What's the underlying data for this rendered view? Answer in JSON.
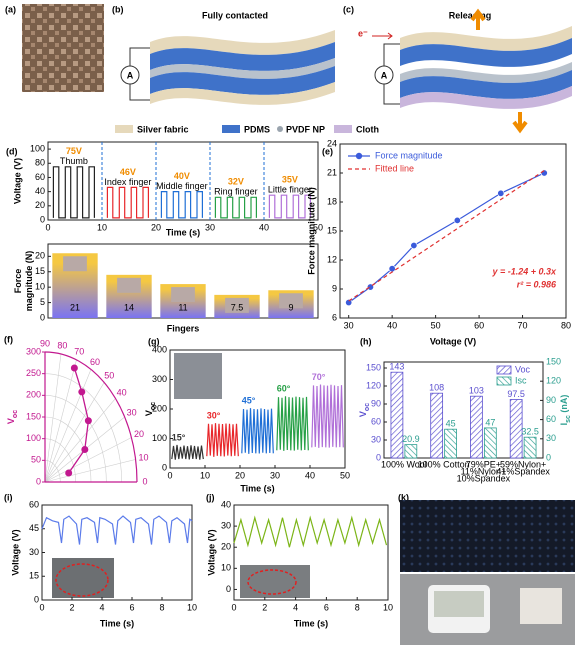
{
  "panel_labels": [
    "(a)",
    "(b)",
    "(c)",
    "(d)",
    "(e)",
    "(f)",
    "(g)",
    "(h)",
    "(i)",
    "(j)",
    "(k)"
  ],
  "diagram": {
    "b_title": "Fully contacted",
    "c_title": "Releasing",
    "ammeter": "A",
    "electron": "e⁻",
    "legend": [
      "Silver fabric",
      "PDMS",
      "PVDF NP",
      "Cloth"
    ]
  },
  "chart_data": [
    {
      "type": "line",
      "x_label": "Time (s)",
      "y_label": "Voltage (V)",
      "xlim": [
        0,
        50
      ],
      "ylim": [
        0,
        110
      ],
      "xticks": [
        0,
        10,
        20,
        30,
        40,
        50
      ],
      "yticks": [
        0,
        20,
        40,
        60,
        80,
        100
      ],
      "dividers": true,
      "legend": "inline",
      "peak_labels": [
        "75V",
        "46V",
        "40V",
        "32V",
        "35V"
      ],
      "series": [
        {
          "name": "Thumb",
          "color": "#222222",
          "x": [
            1,
            1,
            2,
            2,
            3.2,
            3.2,
            4.2,
            4.2,
            5.4,
            5.4,
            6.4,
            6.4,
            7.6,
            7.6,
            8.6,
            8.6
          ],
          "values": [
            3,
            75,
            75,
            3,
            3,
            75,
            75,
            3,
            3,
            75,
            75,
            3,
            3,
            75,
            75,
            3
          ]
        },
        {
          "name": "Index finger",
          "color": "#e8262a",
          "x": [
            11,
            11,
            12,
            12,
            13.2,
            13.2,
            14.2,
            14.2,
            15.4,
            15.4,
            16.4,
            16.4,
            17.6,
            17.6,
            18.6,
            18.6
          ],
          "values": [
            3,
            46,
            46,
            3,
            3,
            46,
            46,
            3,
            3,
            46,
            46,
            3,
            3,
            46,
            46,
            3
          ]
        },
        {
          "name": "Middle finger",
          "color": "#1f6fd6",
          "x": [
            21,
            21,
            22,
            22,
            23.2,
            23.2,
            24.2,
            24.2,
            25.4,
            25.4,
            26.4,
            26.4,
            27.6,
            27.6,
            28.6,
            28.6
          ],
          "values": [
            3,
            40,
            40,
            3,
            3,
            40,
            40,
            3,
            3,
            40,
            40,
            3,
            3,
            40,
            40,
            3
          ]
        },
        {
          "name": "Ring finger",
          "color": "#26a046",
          "x": [
            31,
            31,
            32,
            32,
            33.2,
            33.2,
            34.2,
            34.2,
            35.4,
            35.4,
            36.4,
            36.4,
            37.6,
            37.6,
            38.6,
            38.6
          ],
          "values": [
            3,
            32,
            32,
            3,
            3,
            32,
            32,
            3,
            3,
            32,
            32,
            3,
            3,
            32,
            32,
            3
          ]
        },
        {
          "name": "Little finger",
          "color": "#b070d8",
          "x": [
            41,
            41,
            42,
            42,
            43.2,
            43.2,
            44.2,
            44.2,
            45.4,
            45.4,
            46.4,
            46.4,
            47.6,
            47.6,
            48.6,
            48.6
          ],
          "values": [
            3,
            35,
            35,
            3,
            3,
            35,
            35,
            3,
            3,
            35,
            35,
            3,
            3,
            35,
            35,
            3
          ]
        }
      ]
    },
    {
      "type": "bar",
      "x_label": "Fingers",
      "y_label": [
        "Force",
        "magnitude (N)"
      ],
      "categories": [
        null,
        null,
        null,
        null,
        null
      ],
      "values": [
        21,
        14,
        11,
        7.5,
        9
      ],
      "ylim": [
        0,
        24
      ],
      "yticks": [
        0,
        5,
        10,
        15,
        20
      ],
      "gradient": [
        "#f5c842",
        "#7a73f2"
      ]
    },
    {
      "type": "line",
      "x_label": "Voltage (V)",
      "y_label": "Force magnitude (N)",
      "xlim": [
        28,
        80
      ],
      "xticks": [
        30,
        40,
        50,
        60,
        70,
        80
      ],
      "ylim": [
        6,
        24
      ],
      "yticks": [
        6,
        9,
        12,
        15,
        18,
        21,
        24
      ],
      "legend": "upper left",
      "series": [
        {
          "name": "Force magnitude",
          "color": "#3b5bdb",
          "marker": "circle",
          "x": [
            30,
            35,
            40,
            45,
            55,
            65,
            75
          ],
          "values": [
            7.6,
            9.2,
            11.1,
            13.5,
            16.1,
            18.9,
            21
          ]
        },
        {
          "name": "Fitted line",
          "color": "#e03131",
          "dash": true,
          "x": [
            30,
            75
          ],
          "values": [
            7.76,
            21.26
          ]
        }
      ],
      "annotations": [
        "y = -1.24 + 0.3x",
        "r² = 0.986"
      ]
    },
    {
      "type": "polar",
      "r_label": {
        "text": "V",
        "sub": "oc"
      },
      "rlim": [
        0,
        300
      ],
      "rticks": [
        0,
        50,
        100,
        150,
        200,
        250,
        300
      ],
      "thetalim": [
        0,
        90
      ],
      "thetaticks": [
        0,
        10,
        20,
        30,
        40,
        50,
        60,
        70,
        80,
        90
      ],
      "theta": [
        15,
        30,
        45,
        60,
        70
      ],
      "values": [
        80,
        150,
        200,
        240,
        280
      ],
      "color": "#c2188f"
    },
    {
      "type": "line",
      "x_label": "Time (s)",
      "y_label": {
        "text": "V",
        "sub": "oc"
      },
      "xlim": [
        0,
        50
      ],
      "xticks": [
        0,
        10,
        20,
        30,
        40,
        50
      ],
      "ylim": [
        0,
        400
      ],
      "yticks": [
        0,
        100,
        200,
        300,
        400
      ],
      "legend": "inline",
      "series": [
        {
          "name": "15°",
          "color": "#333333",
          "x": [
            0.5,
            1,
            1.5,
            2,
            2.5,
            3,
            3.5,
            4,
            4.5,
            5,
            5.5,
            6,
            6.5,
            7,
            7.5,
            8,
            8.5,
            9,
            9.5
          ],
          "values": [
            30,
            75,
            28,
            78,
            30,
            72,
            32,
            76,
            30,
            74,
            29,
            77,
            31,
            75,
            30,
            73,
            28,
            76,
            30
          ]
        },
        {
          "name": "30°",
          "color": "#e8262a",
          "x": [
            10.5,
            11,
            11.5,
            12,
            12.5,
            13,
            13.5,
            14,
            14.5,
            15,
            15.5,
            16,
            16.5,
            17,
            17.5,
            18,
            18.5,
            19,
            19.5
          ],
          "values": [
            40,
            150,
            42,
            148,
            38,
            152,
            41,
            150,
            40,
            149,
            39,
            151,
            42,
            150,
            40,
            148,
            41,
            150,
            40
          ]
        },
        {
          "name": "45°",
          "color": "#1f6fd6",
          "x": [
            20.5,
            21,
            21.5,
            22,
            22.5,
            23,
            23.5,
            24,
            24.5,
            25,
            25.5,
            26,
            26.5,
            27,
            27.5,
            28,
            28.5,
            29,
            29.5
          ],
          "values": [
            50,
            200,
            52,
            198,
            48,
            203,
            51,
            200,
            50,
            199,
            49,
            202,
            52,
            200,
            50,
            198,
            51,
            201,
            50
          ]
        },
        {
          "name": "60°",
          "color": "#26a046",
          "x": [
            30.5,
            31,
            31.5,
            32,
            32.5,
            33,
            33.5,
            34,
            34.5,
            35,
            35.5,
            36,
            36.5,
            37,
            37.5,
            38,
            38.5,
            39,
            39.5
          ],
          "values": [
            60,
            240,
            62,
            238,
            58,
            243,
            61,
            240,
            60,
            239,
            59,
            242,
            62,
            240,
            60,
            238,
            61,
            241,
            60
          ]
        },
        {
          "name": "70°",
          "color": "#b070d8",
          "x": [
            40.5,
            41,
            41.5,
            42,
            42.5,
            43,
            43.5,
            44,
            44.5,
            45,
            45.5,
            46,
            46.5,
            47,
            47.5,
            48,
            48.5,
            49,
            49.5
          ],
          "values": [
            70,
            280,
            72,
            278,
            68,
            283,
            71,
            280,
            70,
            279,
            69,
            282,
            72,
            280,
            70,
            278,
            71,
            281,
            70
          ]
        }
      ]
    },
    {
      "type": "grouped_bar",
      "categories": [
        [
          "100% Wool"
        ],
        [
          "100% Cotton"
        ],
        [
          "79%PE+",
          "11%Nylon+",
          "10%Spandex"
        ],
        [
          "59%Nylon+",
          "41%Spandex"
        ]
      ],
      "ylim": [
        0,
        160
      ],
      "yticks": [
        0,
        30,
        60,
        90,
        120,
        150
      ],
      "y2lim": [
        0,
        150
      ],
      "y2ticks": [
        0,
        30,
        60,
        90,
        120,
        150
      ],
      "y_label": {
        "text": "V",
        "sub": "oc"
      },
      "y2_label": {
        "text": "I",
        "sub": "sc",
        "after": " (nA)"
      },
      "legend": "upper right",
      "series": [
        {
          "name": "Voc",
          "color": "#5a4fcf",
          "hatch": "diagonal",
          "values": [
            143,
            108,
            103,
            97.5
          ]
        },
        {
          "name": "Isc",
          "color": "#2b9e8f",
          "hatch": "backdiagonal",
          "axis": "y2",
          "values": [
            20.9,
            45,
            47,
            32.5
          ]
        }
      ]
    },
    {
      "type": "line",
      "x_label": "Time (s)",
      "y_label": "Voltage (V)",
      "xlim": [
        0,
        10
      ],
      "xticks": [
        0,
        2,
        4,
        6,
        8,
        10
      ],
      "ylim": [
        0,
        60
      ],
      "yticks": [
        0,
        15,
        30,
        45,
        60
      ],
      "color": "#5b7bea",
      "x": [
        0,
        0.3,
        0.7,
        1.1,
        1.3,
        1.45,
        1.8,
        2.3,
        2.5,
        2.65,
        3,
        3.5,
        3.7,
        3.85,
        4.2,
        4.7,
        4.9,
        5.05,
        5.4,
        5.9,
        6.1,
        6.25,
        6.6,
        7.1,
        7.3,
        7.45,
        7.8,
        8.3,
        8.5,
        8.65,
        9,
        9.5,
        9.7,
        9.85,
        10
      ],
      "values": [
        45,
        52,
        50,
        49,
        36,
        51,
        53,
        48,
        35,
        51,
        52,
        49,
        36,
        52,
        51,
        48,
        35,
        50,
        53,
        49,
        36,
        51,
        52,
        48,
        35,
        51,
        53,
        49,
        36,
        50,
        52,
        48,
        36,
        51,
        50
      ]
    },
    {
      "type": "line",
      "x_label": "Time (s)",
      "y_label": "Voltage (V)",
      "xlim": [
        0,
        10
      ],
      "xticks": [
        0,
        2,
        4,
        6,
        8,
        10
      ],
      "ylim": [
        -5,
        40
      ],
      "yticks": [
        0,
        10,
        20,
        30,
        40
      ],
      "color": "#7cb518",
      "x": [
        0,
        0.45,
        0.9,
        1.35,
        1.8,
        2.25,
        2.7,
        3.15,
        3.6,
        4.05,
        4.5,
        4.95,
        5.4,
        5.85,
        6.3,
        6.75,
        7.2,
        7.65,
        8.1,
        8.55,
        9,
        9.45,
        9.9
      ],
      "values": [
        22,
        33,
        21,
        34,
        22,
        33,
        21,
        34,
        20,
        33,
        21,
        34,
        22,
        33,
        21,
        33,
        22,
        34,
        21,
        33,
        22,
        33,
        21
      ]
    }
  ]
}
